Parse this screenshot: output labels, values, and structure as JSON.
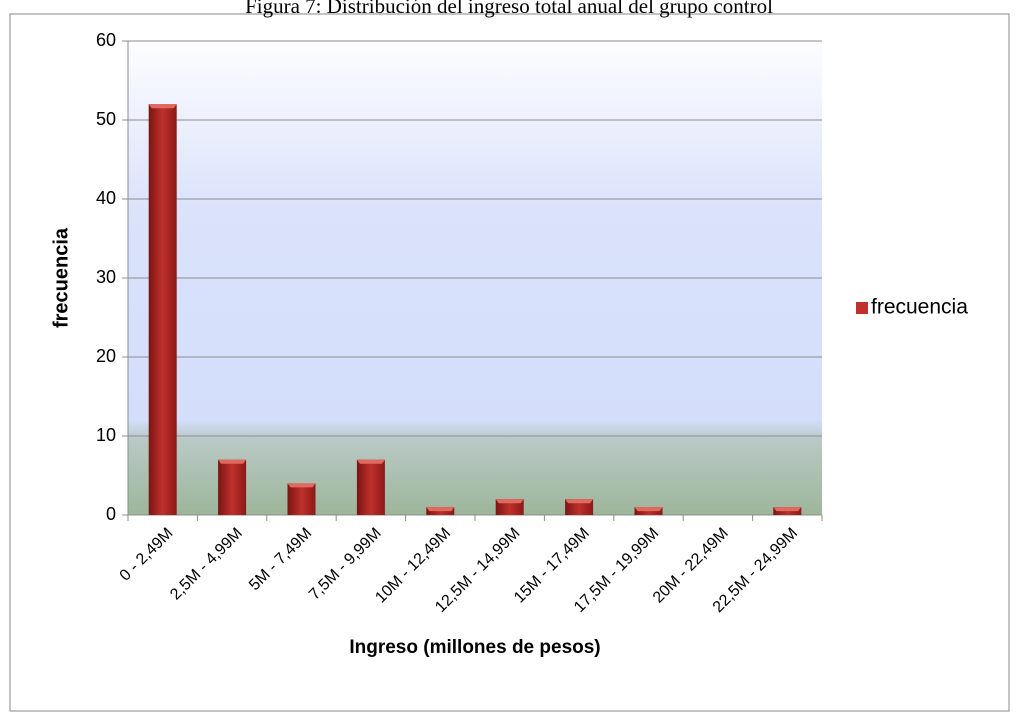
{
  "chart_data": {
    "type": "bar",
    "title": "Figura 7: Distribución del ingreso total anual del grupo control",
    "categories": [
      "0 - 2,49M",
      "2,5M - 4,99M",
      "5M - 7,49M",
      "7,5M - 9,99M",
      "10M - 12,49M",
      "12,5M - 14,99M",
      "15M - 17,49M",
      "17,5M - 19,99M",
      "20M - 22,49M",
      "22,5M - 24,99M"
    ],
    "series": [
      {
        "name": "frecuencia",
        "color": "#c0302c",
        "values": [
          52,
          7,
          4,
          7,
          1,
          2,
          2,
          1,
          0,
          1
        ]
      }
    ],
    "ylim": [
      0,
      60
    ],
    "yticks": [
      0,
      10,
      20,
      30,
      40,
      50,
      60
    ],
    "grid": true,
    "ylabel": "frecuencia",
    "xlabel": "Ingreso (millones de pesos)",
    "legend": "right"
  }
}
